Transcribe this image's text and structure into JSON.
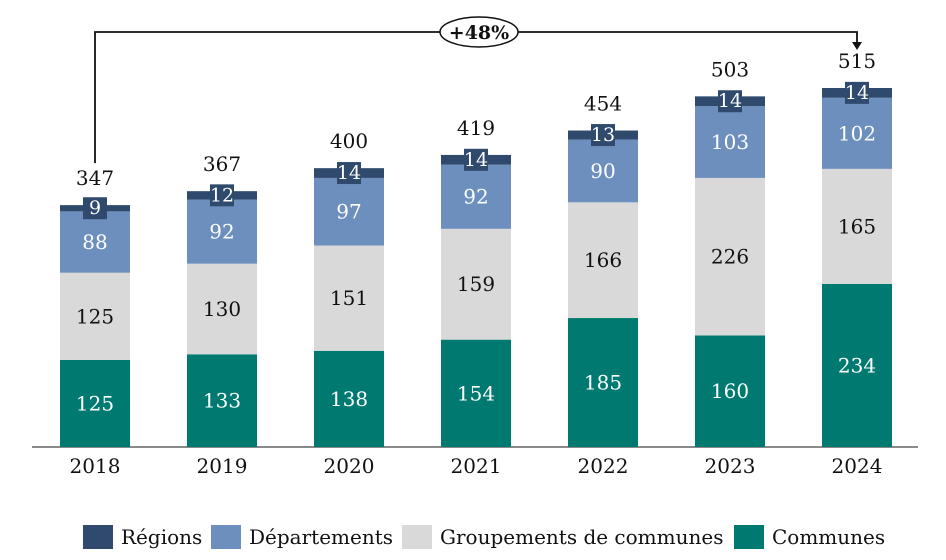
{
  "chart_data": {
    "type": "bar",
    "stacked": true,
    "categories": [
      "2018",
      "2019",
      "2020",
      "2021",
      "2022",
      "2023",
      "2024"
    ],
    "series": [
      {
        "name": "Communes",
        "color": "#007a70",
        "label_color": "#ffffff",
        "values": [
          125,
          133,
          138,
          154,
          185,
          160,
          234
        ]
      },
      {
        "name": "Groupements de communes",
        "color": "#d9d9d9",
        "label_color": "#111111",
        "values": [
          125,
          130,
          151,
          159,
          166,
          226,
          165
        ]
      },
      {
        "name": "Départements",
        "color": "#6d8fbe",
        "label_color": "#ffffff",
        "values": [
          88,
          92,
          97,
          92,
          90,
          103,
          102
        ]
      },
      {
        "name": "Régions",
        "color": "#2f4a6d",
        "label_color": "#ffffff",
        "values": [
          9,
          12,
          14,
          14,
          13,
          14,
          14
        ]
      }
    ],
    "totals": [
      347,
      367,
      400,
      419,
      454,
      503,
      515
    ],
    "annotation": {
      "text": "+48%",
      "from": "2018",
      "to": "2024"
    },
    "ylim": [
      0,
      515
    ],
    "grid": false,
    "legend_position": "bottom"
  }
}
